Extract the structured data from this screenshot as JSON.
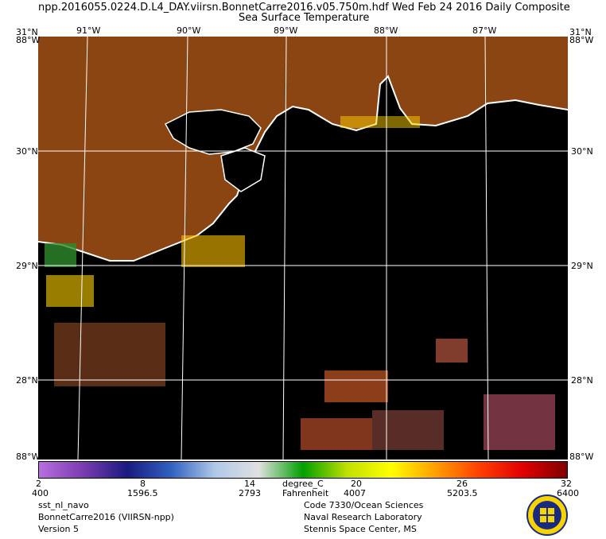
{
  "header": {
    "line1": "npp.2016055.0224.D.L4_DAY.viirsn.BonnetCarre2016.v05.750m.hdf    Wed Feb 24 2016 Daily Composite",
    "line2": "Sea Surface Temperature"
  },
  "map": {
    "lon_labels": [
      "91°W",
      "90°W",
      "89°W",
      "88°W",
      "87°W"
    ],
    "lat_labels": [
      "30°N",
      "29°N",
      "28°N"
    ],
    "corner_top_left": "31°N",
    "corner_top_right": "31°N",
    "corner_overlap_top": "88°W",
    "corner_overlap_bottom": "88°W",
    "land_color": "#8b4513",
    "water_color": "#000000",
    "coast_color": "#ffffff"
  },
  "colorbar": {
    "celsius_ticks": [
      "2",
      "8",
      "14",
      "20",
      "26",
      "32"
    ],
    "fahrenheit_ticks": [
      "400",
      "1596.5",
      "2793",
      "4007",
      "5203.5",
      "6400"
    ],
    "unit_c": "degree_C",
    "unit_f": "Fahrenheit",
    "colors": [
      "#b86fe0",
      "#7a3cb0",
      "#1a1a80",
      "#3060c0",
      "#b0c8e8",
      "#e0e0e0",
      "#00a000",
      "#c0e000",
      "#ffff00",
      "#ffa000",
      "#ff4000",
      "#e00000",
      "#800000"
    ]
  },
  "footer_left": [
    "sst_nl_navo",
    "BonnetCarre2016 (VIIRSN-npp)",
    "Version 5"
  ],
  "footer_right": [
    "Code 7330/Ocean Sciences",
    "Naval Research Laboratory",
    "Stennis Space Center, MS"
  ]
}
